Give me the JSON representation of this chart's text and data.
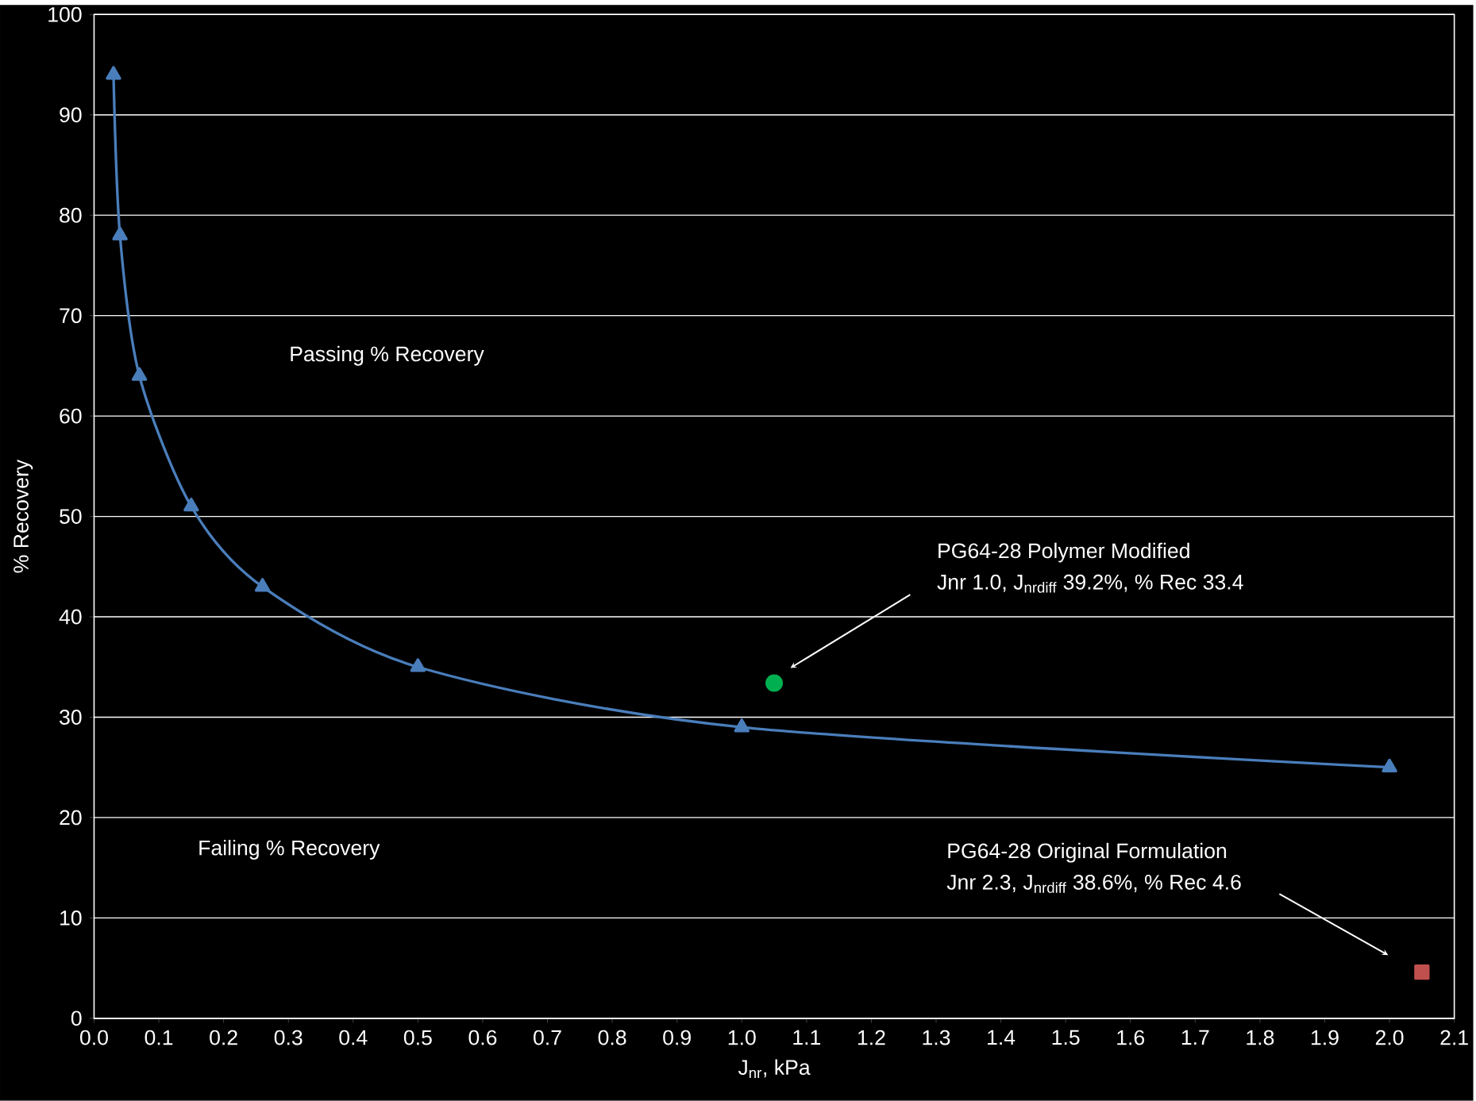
{
  "chart_data": {
    "type": "line",
    "xlabel": "J$_{nr}$, kPa",
    "ylabel": "% Recovery",
    "xlim": [
      0,
      2.1
    ],
    "ylim": [
      0,
      100
    ],
    "xticks": [
      {
        "value": 0,
        "label": "0.0"
      },
      {
        "value": 0.1,
        "label": "0.1"
      },
      {
        "value": 0.2,
        "label": "0.2"
      },
      {
        "value": 0.3,
        "label": "0.3"
      },
      {
        "value": 0.4,
        "label": "0.4"
      },
      {
        "value": 0.5,
        "label": "0.5"
      },
      {
        "value": 0.6,
        "label": "0.6"
      },
      {
        "value": 0.7,
        "label": "0.7"
      },
      {
        "value": 0.8,
        "label": "0.8"
      },
      {
        "value": 0.9,
        "label": "0.9"
      },
      {
        "value": 1.0,
        "label": "1.0"
      },
      {
        "value": 1.1,
        "label": "1.1"
      },
      {
        "value": 1.2,
        "label": "1.2"
      },
      {
        "value": 1.3,
        "label": "1.3"
      },
      {
        "value": 1.4,
        "label": "1.4"
      },
      {
        "value": 1.5,
        "label": "1.5"
      },
      {
        "value": 1.6,
        "label": "1.6"
      },
      {
        "value": 1.7,
        "label": "1.7"
      },
      {
        "value": 1.8,
        "label": "1.8"
      },
      {
        "value": 1.9,
        "label": "1.9"
      },
      {
        "value": 2.0,
        "label": "2.0"
      },
      {
        "value": 2.1,
        "label": "2.1"
      }
    ],
    "yticks": [
      0,
      10,
      20,
      30,
      40,
      50,
      60,
      70,
      80,
      90,
      100
    ],
    "grid": "y",
    "series": [
      {
        "color": "#4a7ebb",
        "marker": "triangle",
        "x": [
          0.03,
          0.04,
          0.07,
          0.15,
          0.26,
          0.5,
          1.0,
          2.0
        ],
        "values": [
          94,
          78,
          64,
          51,
          43,
          35,
          29,
          25
        ]
      },
      {
        "color": "#00b050",
        "marker": "circle",
        "x": [
          1.05
        ],
        "values": [
          33.4
        ]
      },
      {
        "color": "#c0504d",
        "marker": "square",
        "x": [
          2.05
        ],
        "values": [
          4.6
        ]
      }
    ],
    "annotations": [
      "Passing % Recovery",
      "Failing % Recovery",
      "PG64-28 Polymer Modified",
      "Jnr 1.0, J$_{nrdiff}$ 39.2%, % Rec 33.4",
      "PG64-28 Original Formulation",
      "Jnr 2.3, J$_{nrdiff}$ 38.6%, % Rec 4.6"
    ]
  }
}
